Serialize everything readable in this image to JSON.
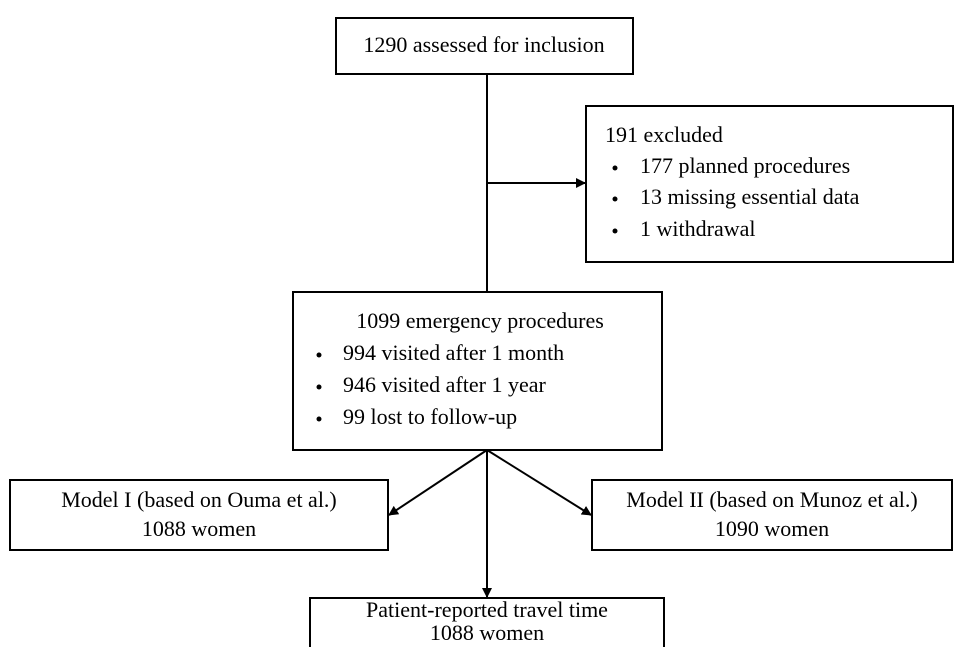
{
  "nodes": [
    {
      "label": "1290 assessed for inclusion"
    },
    {
      "label": "191 excluded",
      "items": [
        "177 planned procedures",
        "13 missing essential data",
        "1 withdrawal"
      ]
    },
    {
      "label": "1099 emergency procedures",
      "items": [
        "994 visited after 1 month",
        "946 visited after 1 year",
        "99 lost to follow-up"
      ]
    },
    {
      "label": "Model I (based on Ouma et al.)",
      "sublabel": "1088 women"
    },
    {
      "label": "Model II (based on Munoz et al.)",
      "sublabel": "1090 women"
    },
    {
      "label": "Patient-reported travel time",
      "sublabel": "1088 women"
    }
  ]
}
